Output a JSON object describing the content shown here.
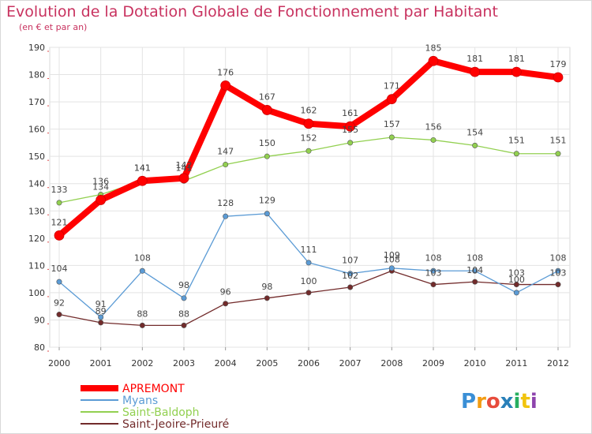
{
  "chart_data": {
    "type": "line",
    "title": "Evolution de la Dotation Globale de Fonctionnement par Habitant",
    "subtitle": "(en € et par an)",
    "xlabel": "",
    "ylabel": "",
    "categories": [
      "2000",
      "2001",
      "2002",
      "2003",
      "2004",
      "2005",
      "2006",
      "2007",
      "2008",
      "2009",
      "2010",
      "2011",
      "2012"
    ],
    "ylim": [
      80,
      190
    ],
    "yticks": [
      80,
      90,
      100,
      110,
      120,
      130,
      140,
      150,
      160,
      170,
      180,
      190
    ],
    "grid": true,
    "legend_position": "bottom-left",
    "series": [
      {
        "name": "APREMONT",
        "color": "#ff0000",
        "values": [
          121,
          134,
          141,
          142,
          176,
          167,
          162,
          161,
          171,
          185,
          181,
          181,
          179
        ]
      },
      {
        "name": "Myans",
        "color": "#5b9bd5",
        "values": [
          104,
          91,
          108,
          98,
          128,
          129,
          111,
          107,
          109,
          108,
          108,
          100,
          108
        ]
      },
      {
        "name": "Saint-Baldoph",
        "color": "#92d050",
        "values": [
          133,
          136,
          141,
          141,
          147,
          150,
          152,
          155,
          157,
          156,
          154,
          151,
          151
        ]
      },
      {
        "name": "Saint-Jeoire-Prieuré",
        "color": "#722b2b",
        "values": [
          92,
          89,
          88,
          88,
          96,
          98,
          100,
          102,
          108,
          103,
          104,
          103,
          103
        ]
      }
    ]
  },
  "logo": {
    "letters": [
      "P",
      "r",
      "o",
      "x",
      "i",
      "t",
      "i"
    ],
    "colors": [
      "#3a8fd6",
      "#f39c12",
      "#e74c3c",
      "#2980b9",
      "#27ae60",
      "#f1c40f",
      "#8e44ad"
    ]
  }
}
